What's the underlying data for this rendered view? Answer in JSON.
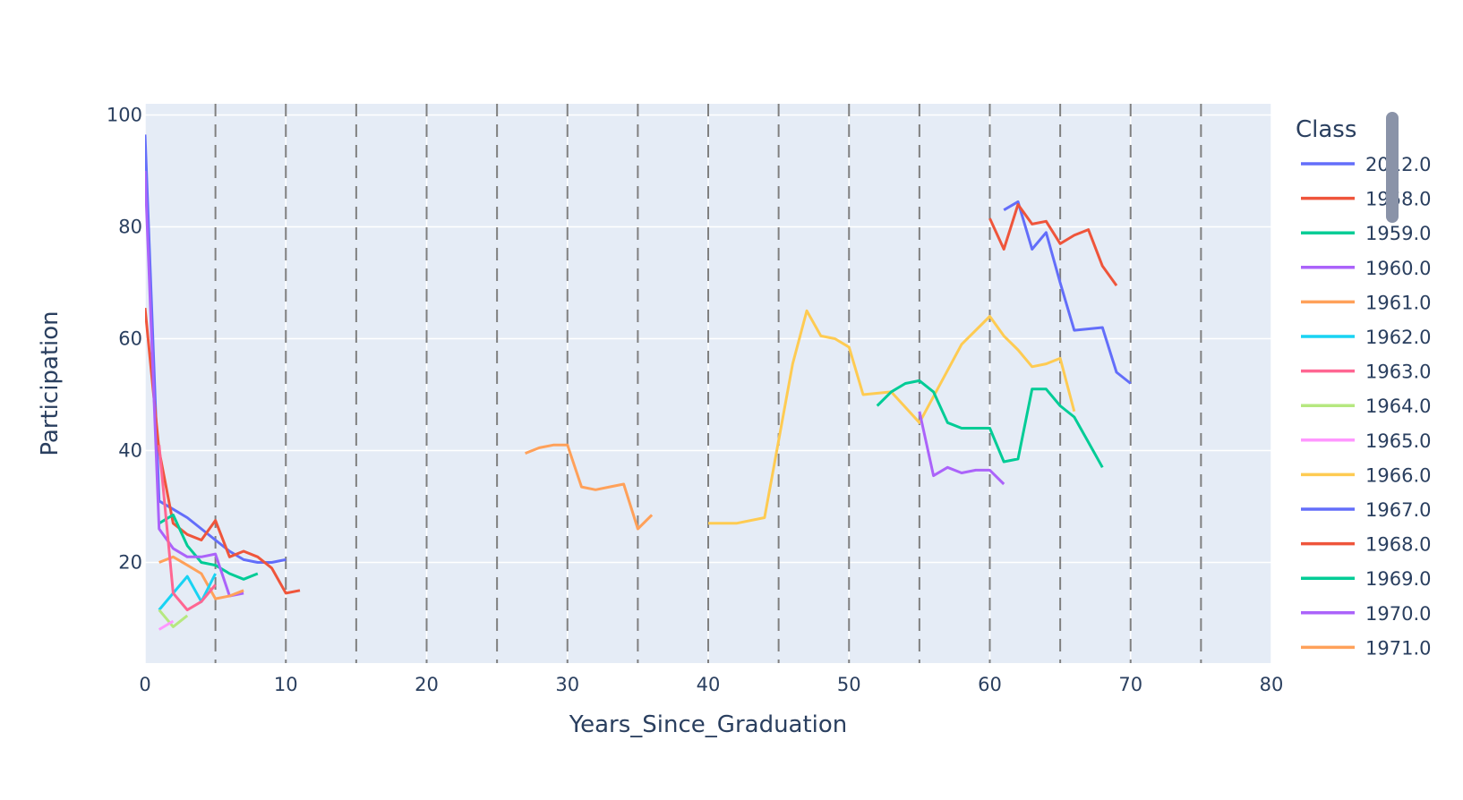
{
  "chart_data": {
    "type": "line",
    "xlabel": "Years_Since_Graduation",
    "ylabel": "Participation",
    "xlim": [
      0,
      80
    ],
    "ylim": [
      2,
      102
    ],
    "xticks": [
      0,
      10,
      20,
      30,
      40,
      50,
      60,
      70,
      80
    ],
    "yticks": [
      20,
      40,
      60,
      80,
      100
    ],
    "vlines": [
      5,
      10,
      15,
      20,
      25,
      30,
      35,
      40,
      45,
      50,
      55,
      60,
      65,
      70,
      75
    ],
    "vline_color": "#808080",
    "plot_bg": "#e5ecf6",
    "grid": true,
    "legend_position": "right",
    "legend_title": "Class",
    "series": [
      {
        "name": "2012.0",
        "color": "#636efa",
        "x": [
          0,
          1,
          2,
          3,
          4,
          5,
          6,
          7,
          8,
          9,
          10
        ],
        "y": [
          96.5,
          31,
          29.5,
          28,
          26,
          24,
          22,
          20.5,
          20,
          20,
          20.5
        ]
      },
      {
        "name": "1958.0",
        "color": "#ef553b",
        "x": [
          0,
          1,
          2,
          3,
          4,
          5,
          6,
          7,
          8,
          9,
          10,
          11
        ],
        "y": [
          65.5,
          40,
          27,
          25,
          24,
          27.5,
          21,
          22,
          21,
          19,
          14.5,
          15
        ]
      },
      {
        "name": "1959.0",
        "color": "#00cc96",
        "x": [
          1,
          2,
          3,
          4,
          5,
          6,
          7,
          8
        ],
        "y": [
          27,
          28.5,
          23,
          20,
          19.5,
          18,
          17,
          18
        ]
      },
      {
        "name": "1960.0",
        "color": "#ab63fa",
        "x": [
          0,
          1,
          2,
          3,
          4,
          5,
          6,
          7
        ],
        "y": [
          90,
          26,
          22.5,
          21,
          21,
          21.5,
          14,
          14.5
        ]
      },
      {
        "name": "1961.0",
        "color": "#ffa15a",
        "x": [
          1,
          2,
          3,
          4,
          5,
          6,
          7
        ],
        "y": [
          20,
          21,
          19.5,
          18,
          13.5,
          14,
          15
        ]
      },
      {
        "name": "1962.0",
        "color": "#19d3f3",
        "x": [
          1,
          2,
          3,
          4,
          5
        ],
        "y": [
          11.5,
          14.5,
          17.5,
          13,
          18
        ]
      },
      {
        "name": "1963.0",
        "color": "#ff6692",
        "x": [
          1,
          2,
          3,
          4,
          5
        ],
        "y": [
          41,
          14.5,
          11.5,
          13,
          16
        ]
      },
      {
        "name": "1964.0",
        "color": "#b6e880",
        "x": [
          1,
          2,
          3
        ],
        "y": [
          11.5,
          8.5,
          10.5
        ]
      },
      {
        "name": "1965.0",
        "color": "#ff97ff",
        "x": [
          1,
          2
        ],
        "y": [
          8,
          9.5
        ]
      },
      {
        "name": "1966.0",
        "color": "#fecb52",
        "x": [
          40,
          42,
          44,
          46,
          47,
          48,
          49,
          50,
          51,
          53,
          55,
          58,
          60,
          61,
          62,
          63,
          64,
          65,
          66
        ],
        "y": [
          27,
          27,
          28,
          55.5,
          65,
          60.5,
          60,
          58.5,
          50,
          50.5,
          45,
          59,
          64,
          60.5,
          58,
          55,
          55.5,
          56.5,
          47
        ]
      },
      {
        "name": "1967.0",
        "color": "#636efa",
        "x": [
          61,
          62,
          63,
          64,
          65,
          66,
          68,
          69,
          70
        ],
        "y": [
          83,
          84.5,
          76,
          79,
          70,
          61.5,
          62,
          54,
          52
        ]
      },
      {
        "name": "1968.0",
        "color": "#ef553b",
        "x": [
          60,
          61,
          62,
          63,
          64,
          65,
          66,
          67,
          68,
          69
        ],
        "y": [
          81.5,
          76,
          84,
          80.5,
          81,
          77,
          78.5,
          79.5,
          73,
          69.5
        ]
      },
      {
        "name": "1969.0",
        "color": "#00cc96",
        "x": [
          52,
          53,
          54,
          55,
          56,
          57,
          58,
          59,
          60,
          61,
          62,
          63,
          64,
          65,
          66,
          67,
          68
        ],
        "y": [
          48,
          50.5,
          52,
          52.5,
          50.5,
          45,
          44,
          44,
          44,
          38,
          38.5,
          51,
          51,
          48,
          46,
          41.5,
          37
        ]
      },
      {
        "name": "1970.0",
        "color": "#ab63fa",
        "x": [
          55,
          56,
          57,
          58,
          59,
          60,
          61
        ],
        "y": [
          47,
          35.5,
          37,
          36,
          36.5,
          36.5,
          34
        ]
      },
      {
        "name": "1971.0",
        "color": "#ffa15a",
        "x": [
          27,
          28,
          29,
          30,
          31,
          32,
          33,
          34,
          35,
          36
        ],
        "y": [
          39.5,
          40.5,
          41,
          41,
          33.5,
          33,
          33.5,
          34,
          26,
          28.5
        ]
      }
    ]
  }
}
